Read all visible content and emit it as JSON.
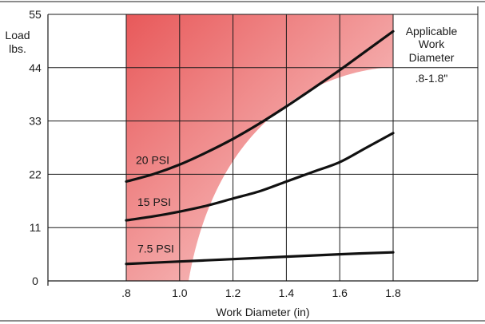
{
  "chart_data": {
    "type": "line",
    "title": "",
    "xlabel": "Work Diameter (in)",
    "ylabel_lines": [
      "Load",
      "lbs."
    ],
    "x_ticks": [
      ".8",
      "1.0",
      "1.2",
      "1.4",
      "1.6",
      "1.8"
    ],
    "x_tick_values": [
      0.8,
      1.0,
      1.2,
      1.4,
      1.6,
      1.8
    ],
    "y_ticks": [
      "0",
      "11",
      "22",
      "33",
      "44",
      "55"
    ],
    "y_tick_values": [
      0,
      11,
      22,
      33,
      44,
      55
    ],
    "xlim": [
      0.8,
      1.8
    ],
    "ylim": [
      0,
      55
    ],
    "grid": true,
    "shaded_region": {
      "label_lines": [
        "Applicable",
        "Work",
        "Diameter"
      ],
      "range_label": ".8-1.8\"",
      "x_range": [
        0.8,
        1.8
      ],
      "color_start": "#e85c5c",
      "color_end": "#ffffff"
    },
    "series": [
      {
        "name": "20 PSI",
        "x": [
          0.8,
          0.9,
          1.0,
          1.1,
          1.2,
          1.3,
          1.4,
          1.5,
          1.6,
          1.7,
          1.8
        ],
        "values": [
          20.5,
          22.0,
          24.0,
          26.5,
          29.3,
          32.5,
          36.0,
          39.7,
          43.5,
          47.5,
          51.5
        ]
      },
      {
        "name": "15 PSI",
        "x": [
          0.8,
          0.9,
          1.0,
          1.1,
          1.2,
          1.3,
          1.4,
          1.5,
          1.6,
          1.7,
          1.8
        ],
        "values": [
          12.5,
          13.3,
          14.3,
          15.5,
          17.0,
          18.5,
          20.5,
          22.5,
          24.5,
          27.5,
          30.5
        ]
      },
      {
        "name": "7.5 PSI",
        "x": [
          0.8,
          1.0,
          1.2,
          1.4,
          1.6,
          1.8
        ],
        "values": [
          3.5,
          4.0,
          4.5,
          5.0,
          5.5,
          5.9
        ]
      }
    ]
  }
}
